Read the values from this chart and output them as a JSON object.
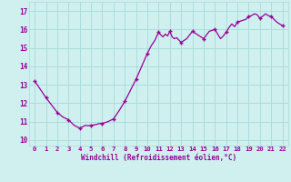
{
  "xlabel": "Windchill (Refroidissement éolien,°C)",
  "background_color": "#cff0ee",
  "grid_color": "#aadddd",
  "line_color": "#990099",
  "xlim": [
    -0.5,
    22.5
  ],
  "ylim": [
    9.7,
    17.5
  ],
  "yticks": [
    10,
    11,
    12,
    13,
    14,
    15,
    16,
    17
  ],
  "xticks": [
    0,
    1,
    2,
    3,
    4,
    5,
    6,
    7,
    8,
    9,
    10,
    11,
    12,
    13,
    14,
    15,
    16,
    17,
    18,
    19,
    20,
    21,
    22
  ],
  "x": [
    0,
    0.5,
    1,
    1.5,
    2,
    2.5,
    3,
    3.25,
    3.5,
    3.75,
    4,
    4.25,
    4.5,
    4.75,
    5,
    5.25,
    5.5,
    5.75,
    6,
    6.5,
    7,
    7.5,
    8,
    8.5,
    9,
    9.5,
    10,
    10.33,
    10.66,
    11,
    11.2,
    11.4,
    11.6,
    11.8,
    12,
    12.2,
    12.4,
    12.6,
    13,
    13.5,
    14,
    14.5,
    15,
    15.5,
    16,
    16.25,
    16.5,
    16.75,
    17,
    17.25,
    17.5,
    17.75,
    18,
    18.25,
    18.5,
    18.75,
    19,
    19.25,
    19.5,
    19.75,
    20,
    20.25,
    20.5,
    20.75,
    21,
    21.25,
    21.5,
    21.75,
    22
  ],
  "y": [
    13.2,
    12.75,
    12.3,
    11.9,
    11.5,
    11.25,
    11.1,
    10.95,
    10.8,
    10.72,
    10.65,
    10.72,
    10.8,
    10.78,
    10.8,
    10.82,
    10.85,
    10.9,
    10.9,
    11.0,
    11.15,
    11.6,
    12.1,
    12.7,
    13.3,
    14.0,
    14.7,
    15.1,
    15.4,
    15.85,
    15.7,
    15.6,
    15.75,
    15.65,
    15.9,
    15.6,
    15.5,
    15.55,
    15.3,
    15.5,
    15.9,
    15.7,
    15.5,
    15.9,
    16.0,
    15.75,
    15.5,
    15.65,
    15.85,
    16.1,
    16.3,
    16.15,
    16.4,
    16.45,
    16.5,
    16.55,
    16.7,
    16.75,
    16.85,
    16.8,
    16.6,
    16.72,
    16.85,
    16.75,
    16.7,
    16.55,
    16.4,
    16.3,
    16.2
  ],
  "marker_x": [
    0,
    1,
    2,
    3,
    4,
    5,
    6,
    7,
    8,
    9,
    10,
    11,
    12,
    13,
    14,
    15,
    16,
    17,
    18,
    19,
    20,
    21,
    22
  ],
  "marker_y": [
    13.2,
    12.3,
    11.5,
    11.1,
    10.65,
    10.8,
    10.9,
    11.15,
    12.1,
    13.3,
    14.7,
    15.85,
    15.9,
    15.3,
    15.9,
    15.5,
    16.0,
    15.85,
    16.4,
    16.7,
    16.6,
    16.7,
    16.2
  ]
}
